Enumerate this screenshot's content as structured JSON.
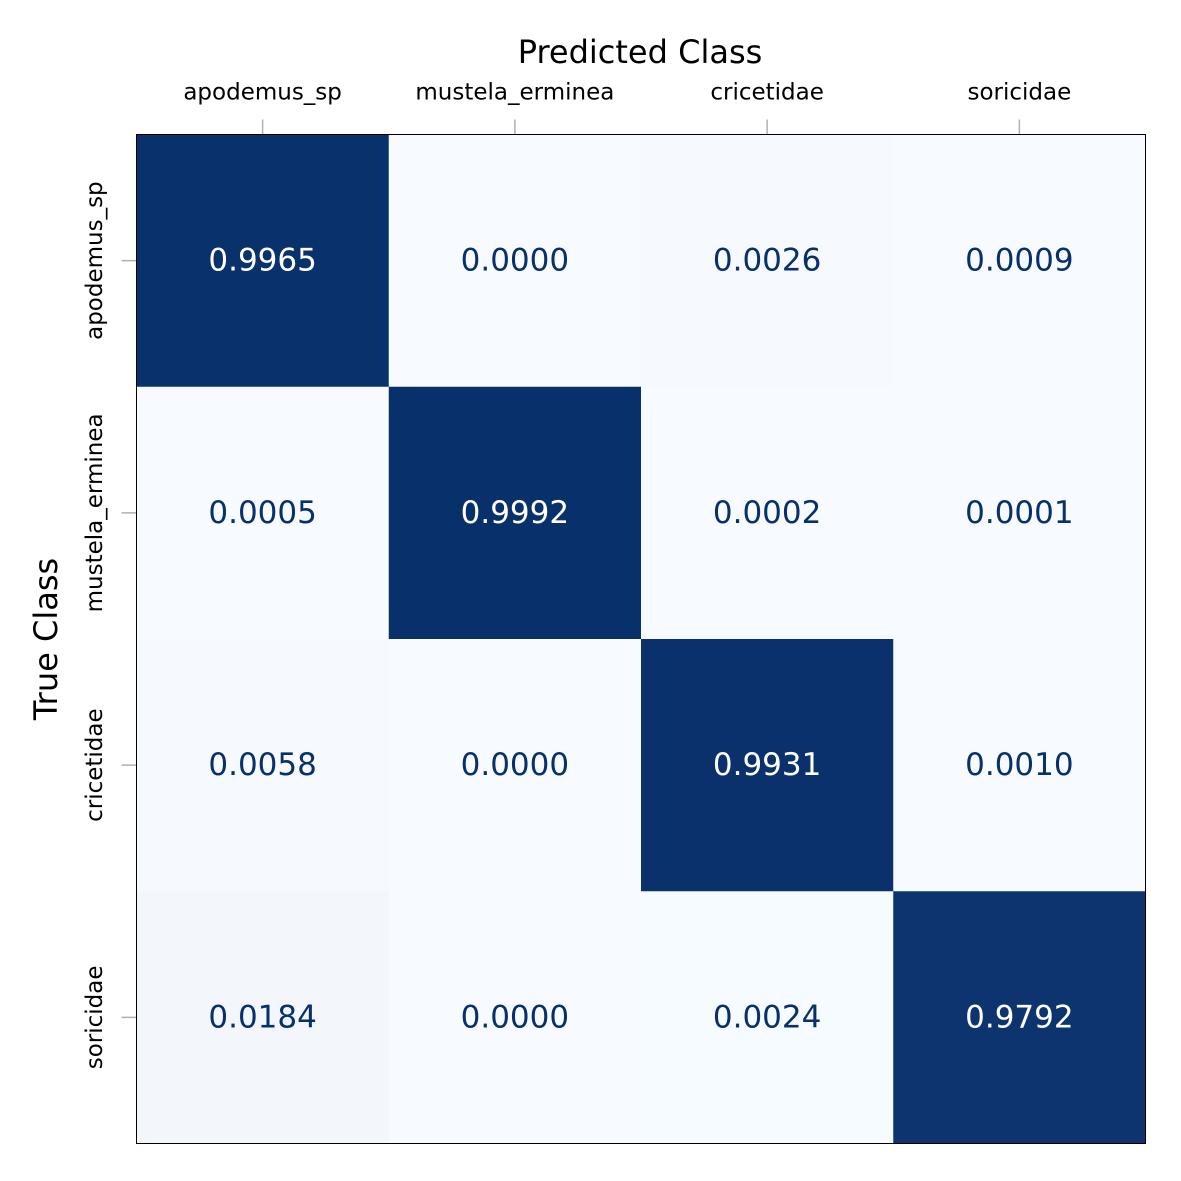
{
  "chart_data": {
    "type": "heatmap",
    "xlabel": "Predicted Class",
    "ylabel": "True Class",
    "x_categories": [
      "apodemus_sp",
      "mustela_erminea",
      "cricetidae",
      "soricidae"
    ],
    "y_categories": [
      "apodemus_sp",
      "mustela_erminea",
      "cricetidae",
      "soricidae"
    ],
    "values": [
      [
        0.9965,
        0.0,
        0.0026,
        0.0009
      ],
      [
        0.0005,
        0.9992,
        0.0002,
        0.0001
      ],
      [
        0.0058,
        0.0,
        0.9931,
        0.001
      ],
      [
        0.0184,
        0.0,
        0.0024,
        0.9792
      ]
    ],
    "value_labels": [
      [
        "0.9965",
        "0.0000",
        "0.0026",
        "0.0009"
      ],
      [
        "0.0005",
        "0.9992",
        "0.0002",
        "0.0001"
      ],
      [
        "0.0058",
        "0.0000",
        "0.9931",
        "0.0010"
      ],
      [
        "0.0184",
        "0.0000",
        "0.0024",
        "0.9792"
      ]
    ],
    "x_axis_position": "top",
    "grid": false,
    "colormap": {
      "low": "#f7fbff",
      "high": "#08306b",
      "label_dark_text": "#08306b",
      "label_light_text": "#ffffff"
    }
  }
}
